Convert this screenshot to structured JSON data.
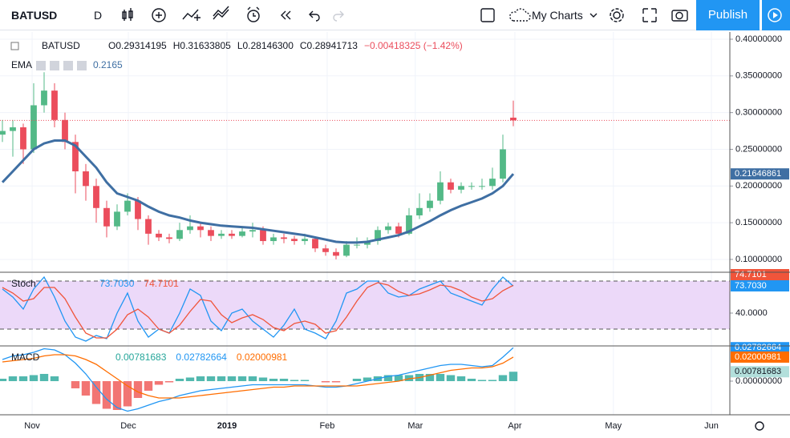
{
  "toolbar": {
    "symbol": "BATUSD",
    "interval": "D",
    "my_charts": "My Charts",
    "publish": "Publish"
  },
  "chart_data": [
    {
      "type": "candlestick",
      "symbol": "BATUSD",
      "last_labels": [
        "O0.29314195",
        "H0.31633805",
        "L0.28146300",
        "C0.28941713",
        "−0.00418325 (−1.42%)"
      ],
      "up_color": "#53b987",
      "down_color": "#eb4d5c",
      "candles": [
        [
          0.27,
          0.29,
          0.26,
          0.275
        ],
        [
          0.275,
          0.29,
          0.24,
          0.28
        ],
        [
          0.28,
          0.285,
          0.23,
          0.25
        ],
        [
          0.25,
          0.34,
          0.245,
          0.31
        ],
        [
          0.31,
          0.355,
          0.3,
          0.33
        ],
        [
          0.33,
          0.34,
          0.28,
          0.29
        ],
        [
          0.29,
          0.3,
          0.25,
          0.26
        ],
        [
          0.26,
          0.27,
          0.19,
          0.22
        ],
        [
          0.22,
          0.23,
          0.18,
          0.2
        ],
        [
          0.2,
          0.21,
          0.15,
          0.17
        ],
        [
          0.17,
          0.18,
          0.13,
          0.145
        ],
        [
          0.145,
          0.175,
          0.14,
          0.165
        ],
        [
          0.165,
          0.19,
          0.16,
          0.18
        ],
        [
          0.18,
          0.185,
          0.14,
          0.155
        ],
        [
          0.155,
          0.16,
          0.12,
          0.135
        ],
        [
          0.135,
          0.14,
          0.125,
          0.13
        ],
        [
          0.13,
          0.135,
          0.122,
          0.128
        ],
        [
          0.128,
          0.15,
          0.125,
          0.14
        ],
        [
          0.14,
          0.16,
          0.135,
          0.145
        ],
        [
          0.145,
          0.15,
          0.13,
          0.14
        ],
        [
          0.14,
          0.145,
          0.125,
          0.132
        ],
        [
          0.132,
          0.14,
          0.128,
          0.135
        ],
        [
          0.135,
          0.14,
          0.128,
          0.132
        ],
        [
          0.132,
          0.145,
          0.13,
          0.138
        ],
        [
          0.138,
          0.15,
          0.13,
          0.14
        ],
        [
          0.14,
          0.145,
          0.12,
          0.125
        ],
        [
          0.125,
          0.135,
          0.12,
          0.13
        ],
        [
          0.13,
          0.135,
          0.122,
          0.128
        ],
        [
          0.128,
          0.132,
          0.12,
          0.125
        ],
        [
          0.125,
          0.135,
          0.12,
          0.128
        ],
        [
          0.128,
          0.13,
          0.11,
          0.115
        ],
        [
          0.115,
          0.12,
          0.105,
          0.11
        ],
        [
          0.11,
          0.115,
          0.1,
          0.105
        ],
        [
          0.105,
          0.125,
          0.103,
          0.12
        ],
        [
          0.12,
          0.13,
          0.115,
          0.12
        ],
        [
          0.12,
          0.13,
          0.115,
          0.125
        ],
        [
          0.125,
          0.145,
          0.12,
          0.14
        ],
        [
          0.14,
          0.15,
          0.135,
          0.145
        ],
        [
          0.145,
          0.15,
          0.13,
          0.135
        ],
        [
          0.135,
          0.17,
          0.133,
          0.16
        ],
        [
          0.16,
          0.19,
          0.155,
          0.17
        ],
        [
          0.17,
          0.19,
          0.165,
          0.18
        ],
        [
          0.18,
          0.22,
          0.175,
          0.205
        ],
        [
          0.205,
          0.21,
          0.19,
          0.195
        ],
        [
          0.195,
          0.205,
          0.19,
          0.2
        ],
        [
          0.2,
          0.205,
          0.195,
          0.2
        ],
        [
          0.2,
          0.21,
          0.195,
          0.2
        ],
        [
          0.2,
          0.225,
          0.195,
          0.21
        ],
        [
          0.21,
          0.27,
          0.205,
          0.25
        ],
        [
          0.29314195,
          0.31633805,
          0.281463,
          0.28941713
        ]
      ],
      "ema": {
        "name": "EMA",
        "label": "0.2165",
        "color": "#3f6fa3",
        "values": [
          0.205,
          0.22,
          0.235,
          0.25,
          0.258,
          0.262,
          0.262,
          0.255,
          0.24,
          0.225,
          0.205,
          0.19,
          0.185,
          0.18,
          0.172,
          0.165,
          0.16,
          0.157,
          0.153,
          0.15,
          0.148,
          0.146,
          0.145,
          0.144,
          0.143,
          0.141,
          0.139,
          0.137,
          0.135,
          0.133,
          0.13,
          0.127,
          0.124,
          0.123,
          0.123,
          0.124,
          0.127,
          0.13,
          0.133,
          0.138,
          0.145,
          0.152,
          0.16,
          0.167,
          0.173,
          0.178,
          0.183,
          0.19,
          0.2,
          0.21646861
        ]
      },
      "xlim": [
        -0.23,
        69.77
      ],
      "xticks": [
        {
          "value": 2.85,
          "label": "Nov"
        },
        {
          "value": 12.08,
          "label": "Dec"
        },
        {
          "value": 21.54,
          "label": "2019"
        },
        {
          "value": 31.15,
          "label": "Feb"
        },
        {
          "value": 39.6,
          "label": "Mar"
        },
        {
          "value": 49.15,
          "label": "Apr"
        },
        {
          "value": 58.6,
          "label": "May"
        },
        {
          "value": 68,
          "label": "Jun"
        }
      ],
      "ylim": [
        0.0825,
        0.4098
      ],
      "yticks": [
        {
          "value": 0.1,
          "label": "0.10000000"
        },
        {
          "value": 0.15,
          "label": "0.15000000"
        },
        {
          "value": 0.2,
          "label": "0.20000000"
        },
        {
          "value": 0.25,
          "label": "0.25000000"
        },
        {
          "value": 0.3,
          "label": "0.30000000"
        },
        {
          "value": 0.35,
          "label": "0.35000000"
        },
        {
          "value": 0.4,
          "label": "0.40000000"
        }
      ],
      "grid": true
    },
    {
      "type": "stoch",
      "name": "Stoch",
      "ylim": [
        -1,
        91
      ],
      "yticks": [
        {
          "value": 40,
          "label": "40.0000"
        }
      ],
      "bands": [
        20,
        80
      ],
      "band_color": "#ecd9f9",
      "series": [
        {
          "color": "#2196f3",
          "last_label": "73.7030",
          "values": [
            70,
            60,
            45,
            70,
            85,
            60,
            30,
            10,
            5,
            12,
            8,
            40,
            65,
            30,
            10,
            20,
            15,
            40,
            70,
            62,
            30,
            18,
            40,
            45,
            30,
            20,
            10,
            25,
            45,
            20,
            15,
            8,
            30,
            65,
            70,
            80,
            80,
            65,
            60,
            62,
            70,
            75,
            80,
            65,
            60,
            55,
            50,
            70,
            85,
            73.703
          ]
        },
        {
          "color": "#f0553b",
          "last_label": "74.7101",
          "values": [
            72,
            65,
            55,
            58,
            72,
            72,
            58,
            35,
            15,
            9,
            9,
            20,
            38,
            45,
            35,
            20,
            15,
            25,
            42,
            57,
            55,
            38,
            28,
            34,
            38,
            32,
            22,
            18,
            27,
            30,
            26,
            15,
            18,
            35,
            55,
            72,
            78,
            75,
            67,
            62,
            64,
            69,
            75,
            73,
            68,
            60,
            55,
            58,
            68,
            74.7101
          ]
        }
      ]
    },
    {
      "type": "macd",
      "name": "MACD",
      "ylim": [
        -0.028,
        0.0293
      ],
      "yticks": [
        {
          "value": 0,
          "label": "0.00000000"
        }
      ],
      "histogram": {
        "color": "#26a69a",
        "neg_color": "#ef5350",
        "values": [
          0.002,
          0.004,
          0.004,
          0.005,
          0.006,
          0.004,
          0,
          -0.006,
          -0.012,
          -0.019,
          -0.023,
          -0.024,
          -0.021,
          -0.014,
          -0.008,
          -0.003,
          -0.001,
          0.002,
          0.003,
          0.004,
          0.004,
          0.004,
          0.004,
          0.004,
          0.004,
          0.003,
          0.002,
          0.002,
          0.001,
          0.001,
          0,
          -0.001,
          -0.001,
          0,
          0.002,
          0.003,
          0.004,
          0.005,
          0.005,
          0.005,
          0.006,
          0.006,
          0.006,
          0.005,
          0.004,
          0.002,
          0.001,
          0.001,
          0.005,
          0.00781683
        ]
      },
      "series": [
        {
          "color": "#2196f3",
          "values": [
            0.018,
            0.021,
            0.022,
            0.024,
            0.027,
            0.026,
            0.022,
            0.015,
            0.006,
            -0.005,
            -0.015,
            -0.022,
            -0.025,
            -0.023,
            -0.02,
            -0.017,
            -0.015,
            -0.012,
            -0.01,
            -0.008,
            -0.007,
            -0.006,
            -0.005,
            -0.004,
            -0.003,
            -0.003,
            -0.003,
            -0.003,
            -0.003,
            -0.003,
            -0.004,
            -0.005,
            -0.005,
            -0.004,
            -0.002,
            0,
            0.002,
            0.004,
            0.005,
            0.007,
            0.009,
            0.011,
            0.013,
            0.014,
            0.014,
            0.013,
            0.012,
            0.013,
            0.02,
            0.02782664
          ]
        },
        {
          "color": "#ff6d00",
          "values": [
            0.016,
            0.017,
            0.018,
            0.019,
            0.021,
            0.022,
            0.022,
            0.021,
            0.018,
            0.014,
            0.008,
            0.002,
            -0.004,
            -0.009,
            -0.012,
            -0.014,
            -0.014,
            -0.014,
            -0.013,
            -0.012,
            -0.011,
            -0.01,
            -0.009,
            -0.008,
            -0.007,
            -0.006,
            -0.005,
            -0.005,
            -0.004,
            -0.004,
            -0.004,
            -0.004,
            -0.004,
            -0.004,
            -0.004,
            -0.003,
            -0.002,
            -0.001,
            0,
            0.002,
            0.003,
            0.005,
            0.007,
            0.009,
            0.01,
            0.011,
            0.011,
            0.012,
            0.015,
            0.02000981
          ]
        }
      ]
    }
  ]
}
